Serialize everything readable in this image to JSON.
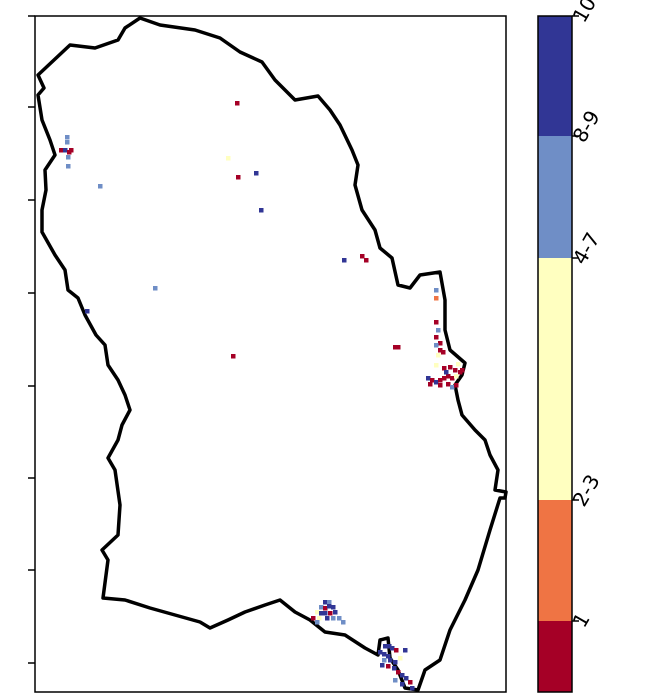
{
  "map": {
    "ytick_count": 8
  },
  "legend": {
    "classes": [
      {
        "label": "10",
        "color": "#313695"
      },
      {
        "label": "8-9",
        "color": "#6f8ec6"
      },
      {
        "label": "4-7",
        "color": "#ffffc0"
      },
      {
        "label": "2-3",
        "color": "#ef7444"
      },
      {
        "label": "1",
        "color": "#a50026"
      }
    ]
  },
  "colors": {
    "outline": "#000000",
    "frame": "#000000"
  }
}
